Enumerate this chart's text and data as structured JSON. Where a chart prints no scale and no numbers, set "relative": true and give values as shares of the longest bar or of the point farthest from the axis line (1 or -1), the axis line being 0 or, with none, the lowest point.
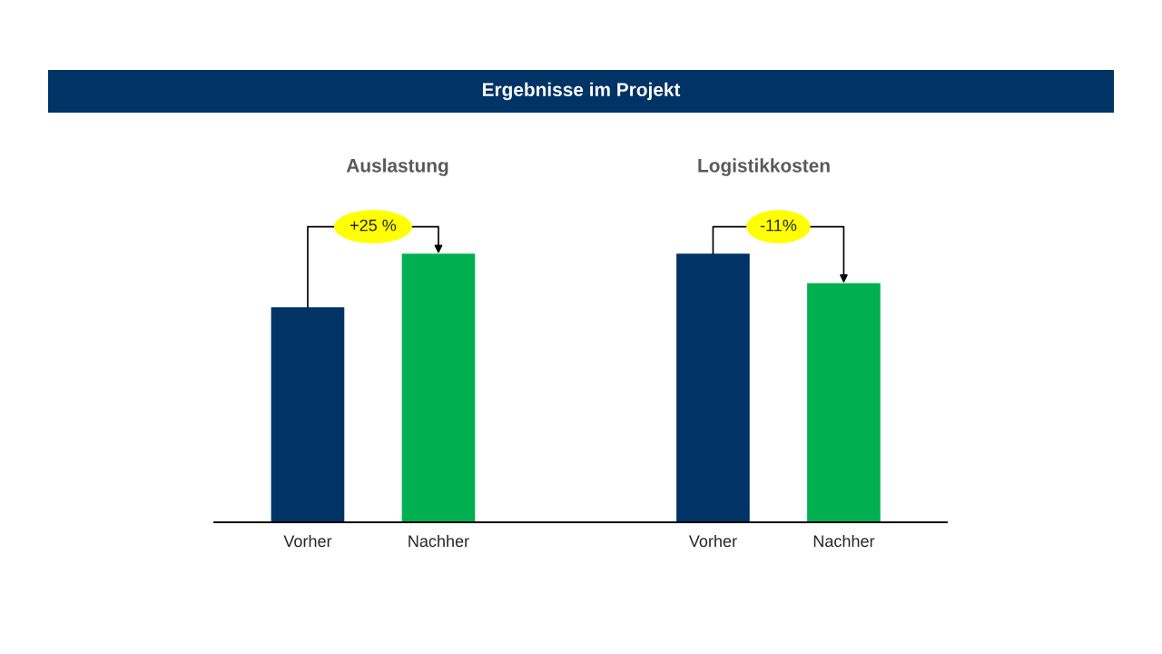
{
  "chart_data": [
    {
      "type": "other",
      "title": "Ergebnisse im Projekt"
    },
    {
      "type": "bar",
      "title": "Auslastung",
      "categories": [
        "Vorher",
        "Nachher"
      ],
      "values": [
        0.8,
        1
      ],
      "colors": [
        "#003366",
        "#00b050"
      ],
      "relative": true,
      "annotations": [
        "+25 %"
      ]
    },
    {
      "type": "bar",
      "title": "Logistikkosten",
      "categories": [
        "Vorher",
        "Nachher"
      ],
      "values": [
        1,
        0.89
      ],
      "colors": [
        "#003366",
        "#00b050"
      ],
      "relative": true,
      "annotations": [
        "-11%"
      ]
    }
  ]
}
